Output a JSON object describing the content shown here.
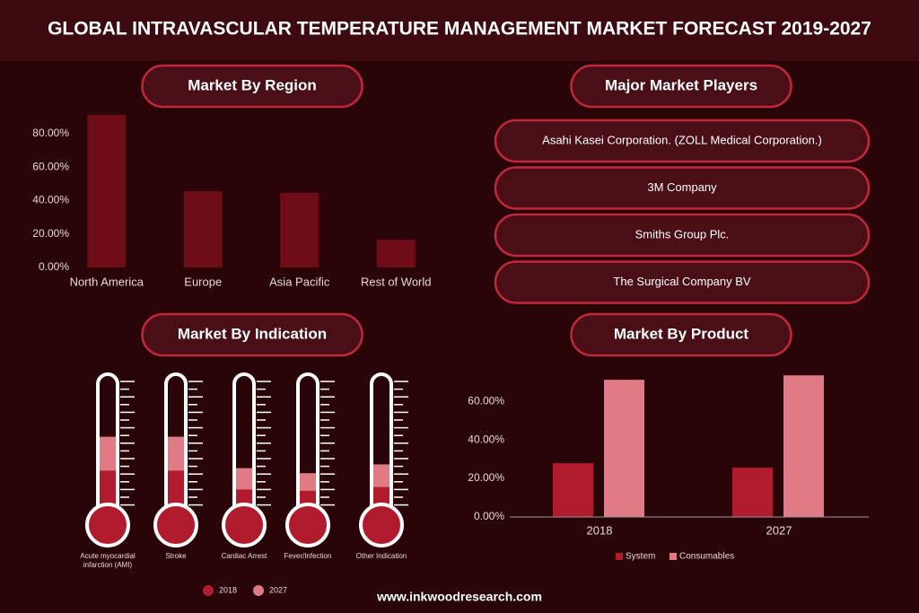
{
  "title": "GLOBAL INTRAVASCULAR TEMPERATURE MANAGEMENT MARKET FORECAST  2019-2027",
  "footer": "www.inkwoodresearch.com",
  "players": {
    "heading": "Major Market Players",
    "items": [
      "Asahi Kasei Corporation. (ZOLL Medical Corporation.)",
      "3M Company",
      "Smiths Group Plc.",
      "The Surgical Company BV"
    ]
  },
  "chart_data": [
    {
      "type": "bar",
      "title": "Market By Region",
      "categories": [
        "North America",
        "Europe",
        "Asia Pacific",
        "Rest of World"
      ],
      "values": [
        91.3,
        45.6,
        44.6,
        16.6
      ],
      "color": "#6e0c17",
      "ylim": [
        0,
        95
      ],
      "yticks": [
        {
          "value": 0,
          "label": "0.00%"
        },
        {
          "value": 20,
          "label": "20.00%"
        },
        {
          "value": 40,
          "label": "40.00%"
        },
        {
          "value": 60,
          "label": "60.00%"
        },
        {
          "value": 80,
          "label": "80.00%"
        }
      ]
    },
    {
      "type": "thermometer",
      "title": "Market By Indication",
      "categories": [
        "Acute myocardial infarction (AMI)",
        "Stroke",
        "Cardiac Arrest",
        "Fever/Infection",
        "Other Indication"
      ],
      "ylim": [
        0,
        100
      ],
      "series": [
        {
          "name": "2018",
          "color": "#b01c2e",
          "values": [
            29,
            29,
            14,
            13,
            16
          ]
        },
        {
          "name": "2027",
          "color": "#e07a85",
          "values": [
            56,
            56,
            31,
            27,
            34
          ]
        }
      ]
    },
    {
      "type": "bar",
      "title": "Market By Product",
      "categories": [
        "2018",
        "2027"
      ],
      "ylim": [
        0,
        75
      ],
      "yticks": [
        {
          "value": 0,
          "label": "0.00%"
        },
        {
          "value": 20,
          "label": "20.00%"
        },
        {
          "value": 40,
          "label": "40.00%"
        },
        {
          "value": 60,
          "label": "60.00%"
        }
      ],
      "series": [
        {
          "name": "System",
          "color": "#b01c2e",
          "values": [
            27.9,
            25.6
          ]
        },
        {
          "name": "Consumables",
          "color": "#e07a85",
          "values": [
            71.2,
            73.5
          ]
        }
      ]
    }
  ]
}
